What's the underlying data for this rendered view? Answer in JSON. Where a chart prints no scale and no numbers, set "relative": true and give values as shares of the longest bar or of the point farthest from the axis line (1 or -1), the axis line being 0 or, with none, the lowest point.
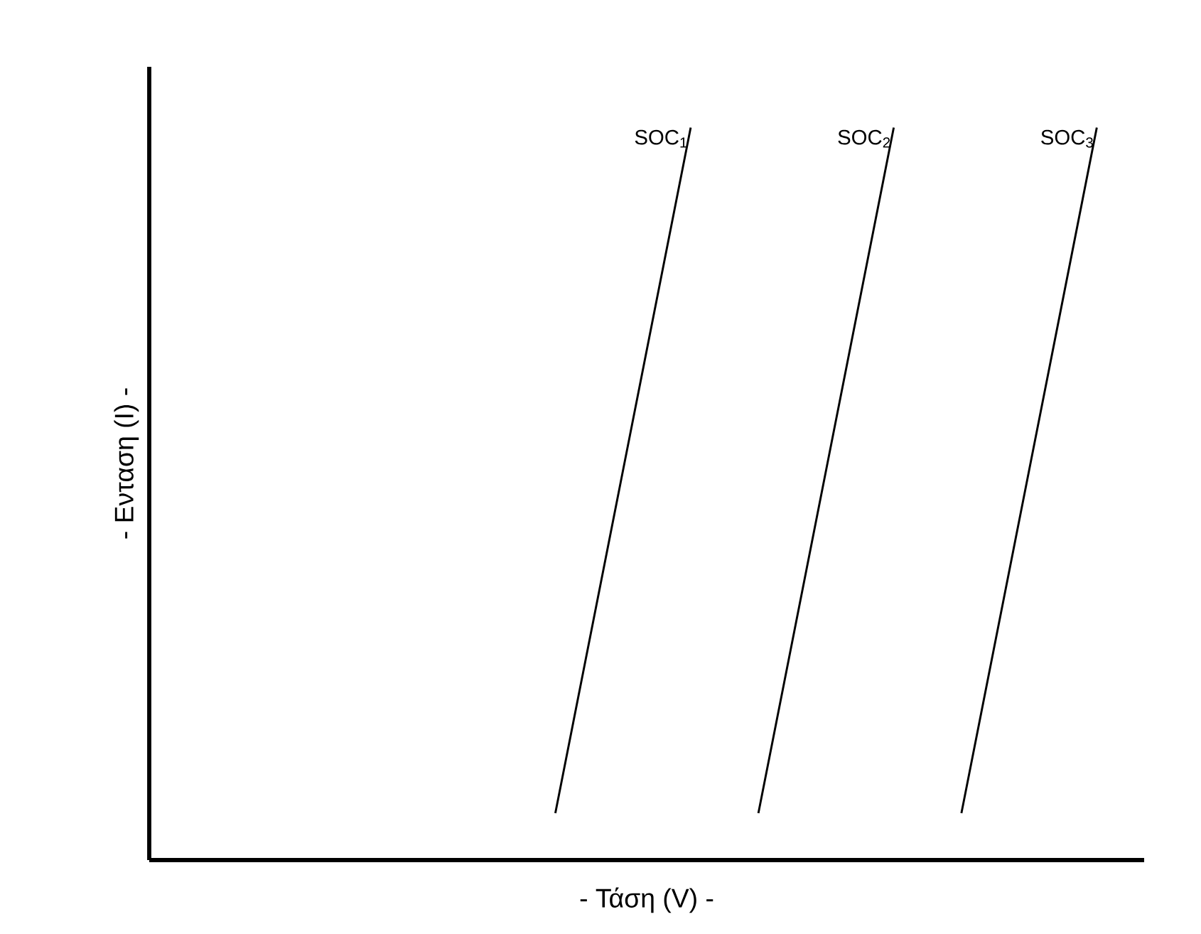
{
  "chart_data": {
    "type": "line",
    "relative": true,
    "xlabel": "- Τάση (V) -",
    "ylabel": "- Ενταση (I) -",
    "categories": [
      null,
      null,
      null,
      null,
      null,
      null,
      null,
      null,
      null,
      null,
      null,
      null,
      null,
      null,
      null
    ],
    "grid": false,
    "legend": false,
    "marker": "none",
    "line_style": "solid",
    "series": [
      {
        "name": "SOC$_{1}$",
        "color": "#000000",
        "values": [
          null,
          null,
          null,
          null,
          null,
          null,
          0.064,
          0.532,
          1,
          null,
          null,
          null,
          null,
          null,
          null
        ]
      },
      {
        "name": "SOC$_{2}$",
        "color": "#000000",
        "values": [
          null,
          null,
          null,
          null,
          null,
          null,
          null,
          null,
          null,
          0.064,
          0.532,
          1,
          null,
          null,
          null
        ]
      },
      {
        "name": "SOC$_{3}$",
        "color": "#000000",
        "values": [
          null,
          null,
          null,
          null,
          null,
          null,
          null,
          null,
          null,
          null,
          null,
          null,
          0.064,
          0.532,
          1
        ]
      }
    ]
  }
}
